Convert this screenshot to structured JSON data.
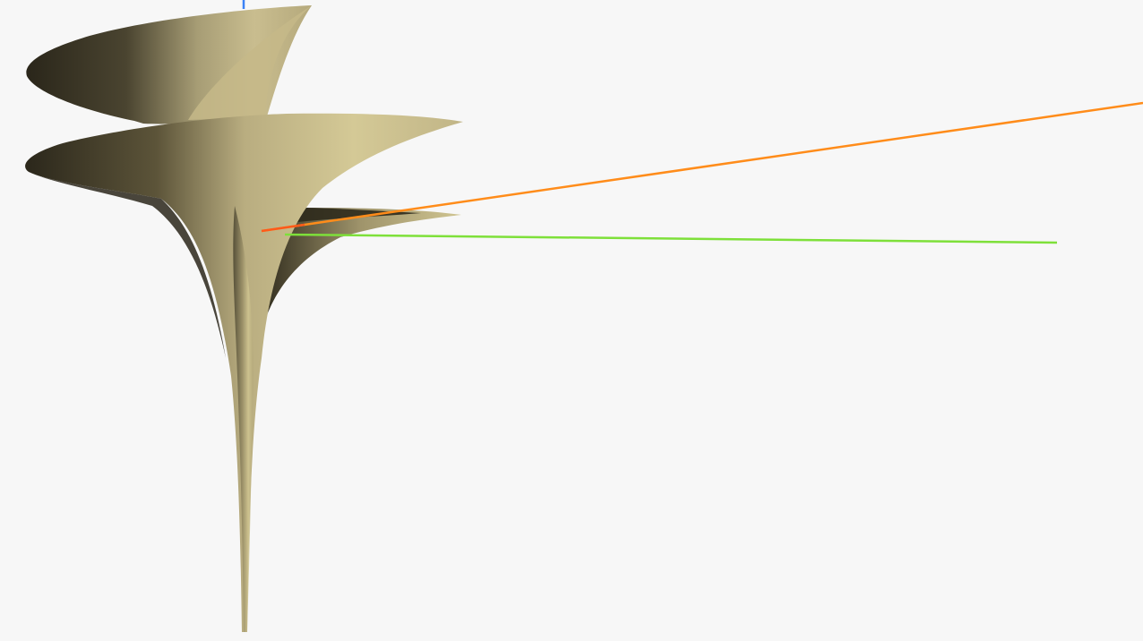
{
  "scene": {
    "type": "3d-viewport",
    "background_color": "#f7f7f7",
    "surface": {
      "name": "twisted-horn-surface",
      "base_color": "#c4b88d",
      "shadow_color": "#2e2a1c",
      "highlight_color": "#d8cfa0"
    },
    "axes": [
      {
        "name": "x-axis",
        "color": "#ff8c1a"
      },
      {
        "name": "y-axis",
        "color": "#7ee03a"
      },
      {
        "name": "z-axis",
        "color": "#3b82f6"
      }
    ]
  }
}
